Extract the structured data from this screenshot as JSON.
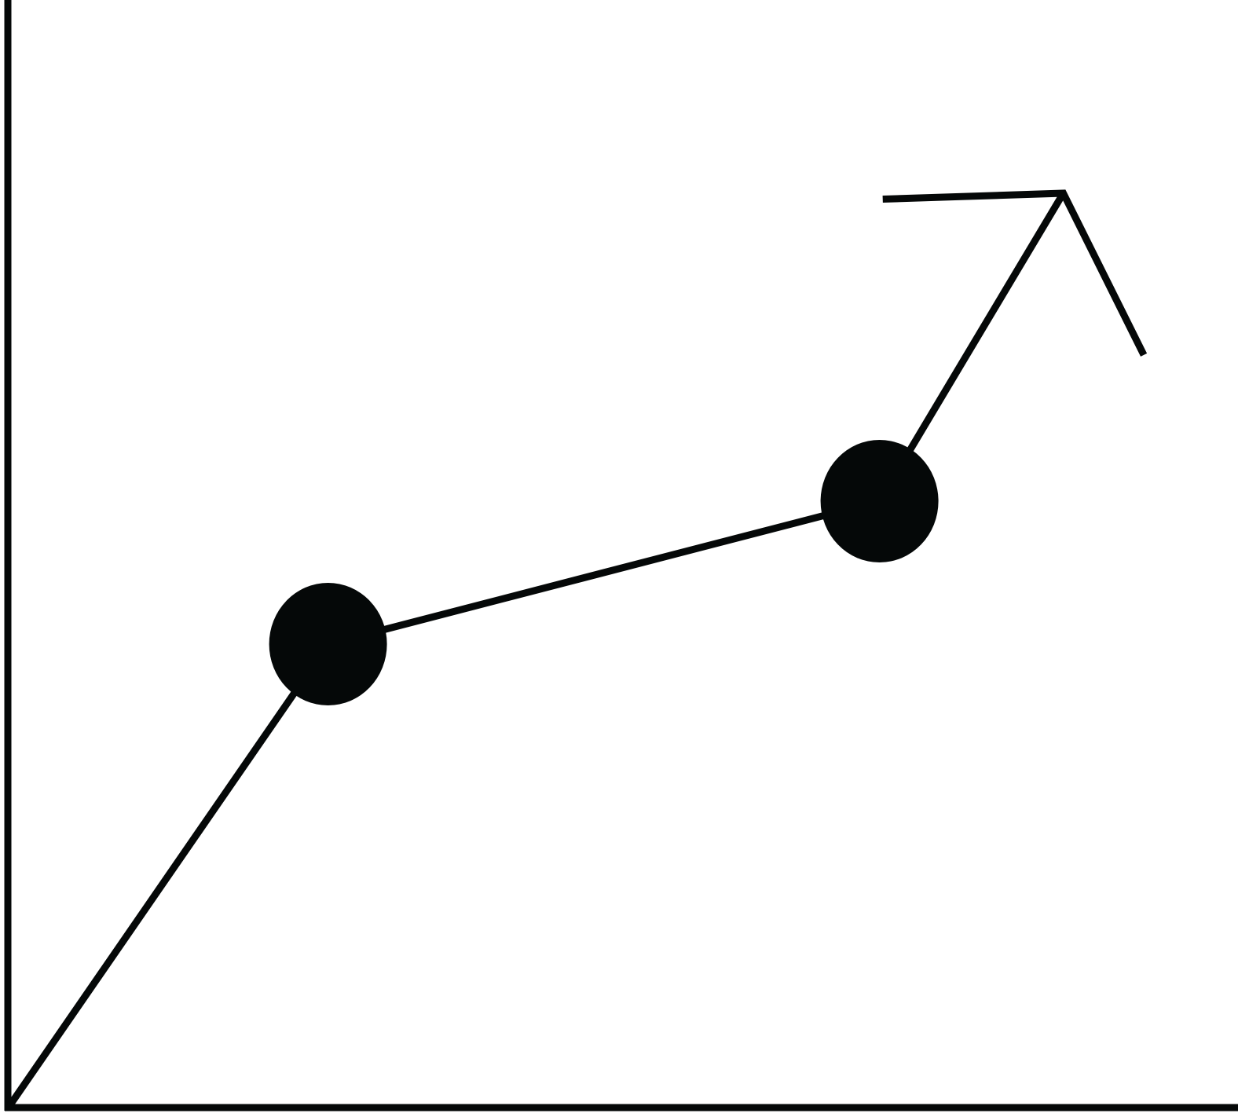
{
  "chart_data": {
    "type": "line",
    "title": "",
    "xlabel": "",
    "ylabel": "",
    "xlim": [
      0,
      1
    ],
    "ylim": [
      0,
      1
    ],
    "grid": false,
    "series": [
      {
        "points": [
          {
            "x": 0.0,
            "y": 0.0
          },
          {
            "x": 0.26,
            "y": 0.42
          },
          {
            "x": 0.71,
            "y": 0.55
          },
          {
            "x": 0.86,
            "y": 0.83
          }
        ],
        "markers": [
          1,
          2
        ],
        "end_arrow": true
      }
    ]
  },
  "colors": {
    "ink": "#050808",
    "background": "#ffffff"
  }
}
